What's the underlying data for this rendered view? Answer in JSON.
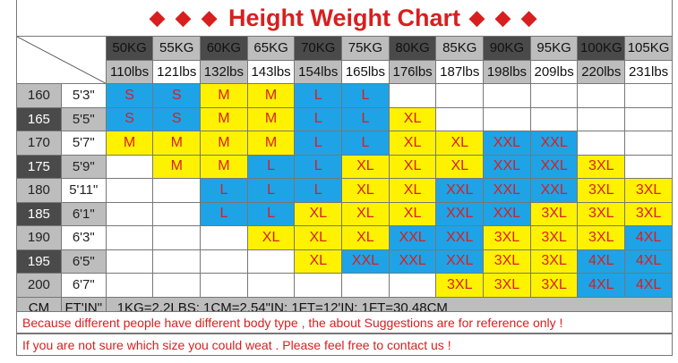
{
  "title": {
    "text": "Height Weight Chart",
    "left_decor": "◆ ◆ ◆",
    "right_decor": "◆ ◆ ◆"
  },
  "kg_headers": [
    "50KG",
    "55KG",
    "60KG",
    "65KG",
    "70KG",
    "75KG",
    "80KG",
    "85KG",
    "90KG",
    "95KG",
    "100KG",
    "105KG"
  ],
  "lbs_headers": [
    "110lbs",
    "121lbs",
    "132lbs",
    "143lbs",
    "154lbs",
    "165lbs",
    "176lbs",
    "187lbs",
    "198lbs",
    "209lbs",
    "220lbs",
    "231lbs"
  ],
  "rows": [
    {
      "cm": "160",
      "ftin": "5'3\"",
      "sizes": [
        "S",
        "S",
        "M",
        "M",
        "L",
        "L",
        "",
        "",
        "",
        "",
        "",
        ""
      ]
    },
    {
      "cm": "165",
      "ftin": "5'5\"",
      "sizes": [
        "S",
        "S",
        "M",
        "M",
        "L",
        "L",
        "XL",
        "",
        "",
        "",
        "",
        ""
      ]
    },
    {
      "cm": "170",
      "ftin": "5'7\"",
      "sizes": [
        "M",
        "M",
        "M",
        "M",
        "L",
        "L",
        "XL",
        "XL",
        "XXL",
        "XXL",
        "",
        ""
      ]
    },
    {
      "cm": "175",
      "ftin": "5'9\"",
      "sizes": [
        "",
        "M",
        "M",
        "L",
        "L",
        "XL",
        "XL",
        "XL",
        "XXL",
        "XXL",
        "3XL",
        ""
      ]
    },
    {
      "cm": "180",
      "ftin": "5'11\"",
      "sizes": [
        "",
        "",
        "L",
        "L",
        "L",
        "XL",
        "XL",
        "XXL",
        "XXL",
        "XXL",
        "3XL",
        "3XL"
      ]
    },
    {
      "cm": "185",
      "ftin": "6'1\"",
      "sizes": [
        "",
        "",
        "L",
        "L",
        "XL",
        "XL",
        "XL",
        "XXL",
        "XXL",
        "3XL",
        "3XL",
        "3XL"
      ]
    },
    {
      "cm": "190",
      "ftin": "6'3\"",
      "sizes": [
        "",
        "",
        "",
        "XL",
        "XL",
        "XL",
        "XXL",
        "XXL",
        "3XL",
        "3XL",
        "3XL",
        "4XL"
      ]
    },
    {
      "cm": "195",
      "ftin": "6'5\"",
      "sizes": [
        "",
        "",
        "",
        "",
        "XL",
        "XXL",
        "XXL",
        "XXL",
        "3XL",
        "3XL",
        "4XL",
        "4XL"
      ]
    },
    {
      "cm": "200",
      "ftin": "6'7\"",
      "sizes": [
        "",
        "",
        "",
        "",
        "",
        "",
        "",
        "3XL",
        "3XL",
        "3XL",
        "4XL",
        "4XL"
      ]
    }
  ],
  "fills": [
    [
      "blue",
      "blue",
      "yellow",
      "yellow",
      "blue",
      "blue",
      "empty",
      "empty",
      "empty",
      "empty",
      "empty",
      "empty"
    ],
    [
      "blue",
      "blue",
      "yellow",
      "yellow",
      "blue",
      "blue",
      "yellow",
      "empty",
      "empty",
      "empty",
      "empty",
      "empty"
    ],
    [
      "yellow",
      "yellow",
      "yellow",
      "yellow",
      "blue",
      "blue",
      "yellow",
      "yellow",
      "blue",
      "blue",
      "empty",
      "empty"
    ],
    [
      "empty",
      "yellow",
      "yellow",
      "blue",
      "blue",
      "yellow",
      "yellow",
      "yellow",
      "blue",
      "blue",
      "yellow",
      "empty"
    ],
    [
      "empty",
      "empty",
      "blue",
      "blue",
      "blue",
      "yellow",
      "yellow",
      "blue",
      "blue",
      "blue",
      "yellow",
      "yellow"
    ],
    [
      "empty",
      "empty",
      "blue",
      "blue",
      "yellow",
      "yellow",
      "yellow",
      "blue",
      "blue",
      "yellow",
      "yellow",
      "yellow"
    ],
    [
      "empty",
      "empty",
      "empty",
      "yellow",
      "yellow",
      "yellow",
      "blue",
      "blue",
      "yellow",
      "yellow",
      "yellow",
      "blue"
    ],
    [
      "empty",
      "empty",
      "empty",
      "empty",
      "yellow",
      "blue",
      "blue",
      "blue",
      "yellow",
      "yellow",
      "blue",
      "blue"
    ],
    [
      "empty",
      "empty",
      "empty",
      "empty",
      "empty",
      "empty",
      "empty",
      "yellow",
      "yellow",
      "yellow",
      "blue",
      "blue"
    ]
  ],
  "footer": {
    "cm_label": "CM",
    "ftin_label": "FT'IN\"",
    "conversions": "1KG=2.2LBS;  1CM=2.54\"IN;  1FT=12'IN;  1FT=30.48CM"
  },
  "notes": [
    "Because different people have different body type , the about Suggestions are for reference only !",
    "If you are not sure which size you could weat . Please feel free to contact us !"
  ],
  "colors": {
    "accent_red": "#d81f1f",
    "blue": "#1ea3e6",
    "yellow": "#fff200",
    "dark_gray": "#4a4a4a",
    "light_gray": "#bdbdbd"
  }
}
